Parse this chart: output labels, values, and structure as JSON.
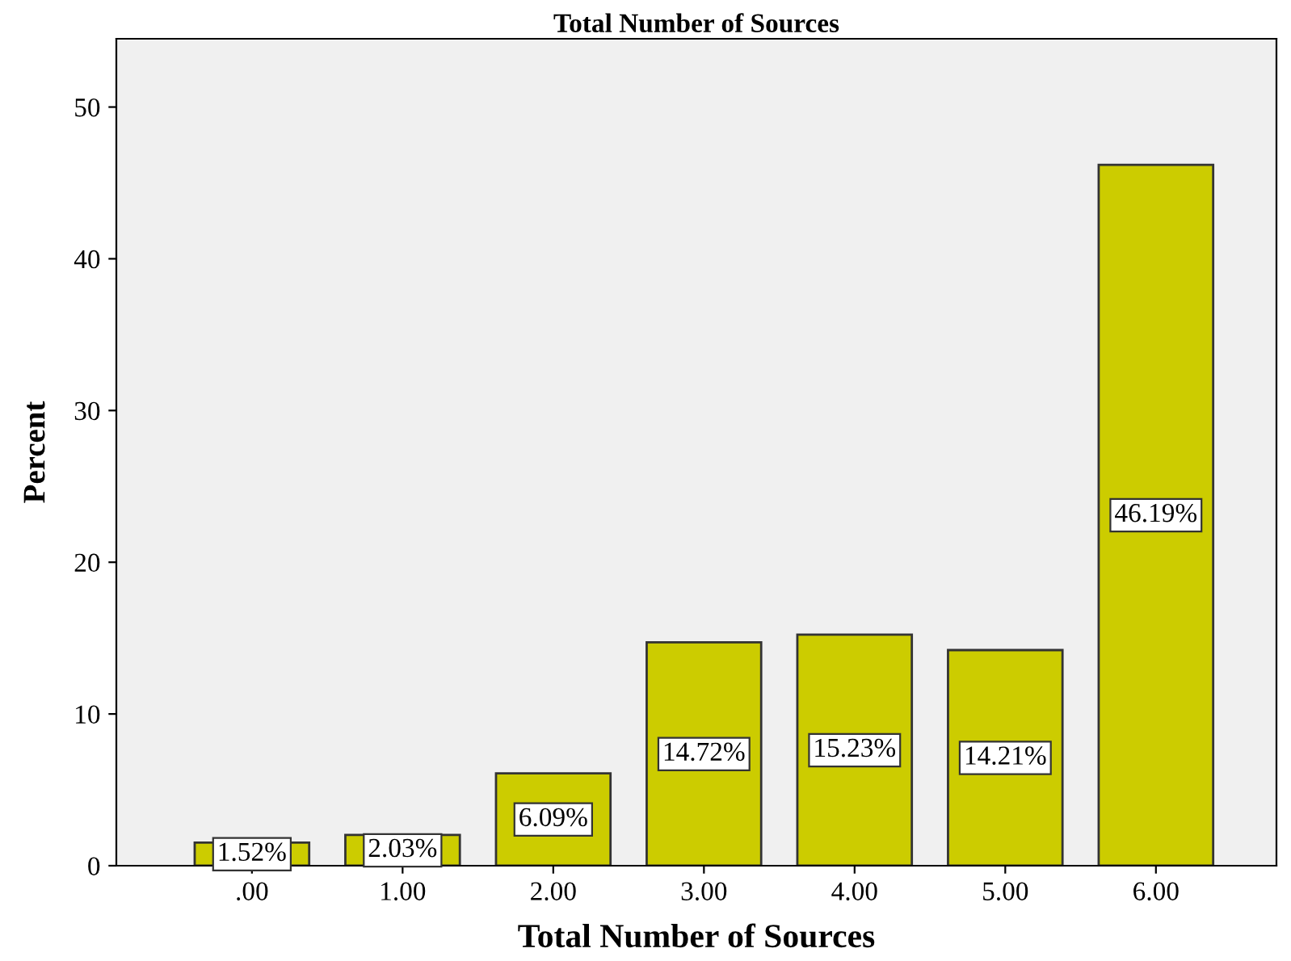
{
  "chart_data": {
    "type": "bar",
    "title": "Total Number of Sources",
    "xlabel": "Total Number of Sources",
    "ylabel": "Percent",
    "categories": [
      ".00",
      "1.00",
      "2.00",
      "3.00",
      "4.00",
      "5.00",
      "6.00"
    ],
    "values": [
      1.52,
      2.03,
      6.09,
      14.72,
      15.23,
      14.21,
      46.19
    ],
    "value_labels": [
      "1.52%",
      "2.03%",
      "6.09%",
      "14.72%",
      "15.23%",
      "14.21%",
      "46.19%"
    ],
    "color": "#cccc00",
    "ylim": [
      0,
      54.5
    ],
    "yticks": [
      0,
      10,
      20,
      30,
      40,
      50
    ],
    "grid": false
  }
}
